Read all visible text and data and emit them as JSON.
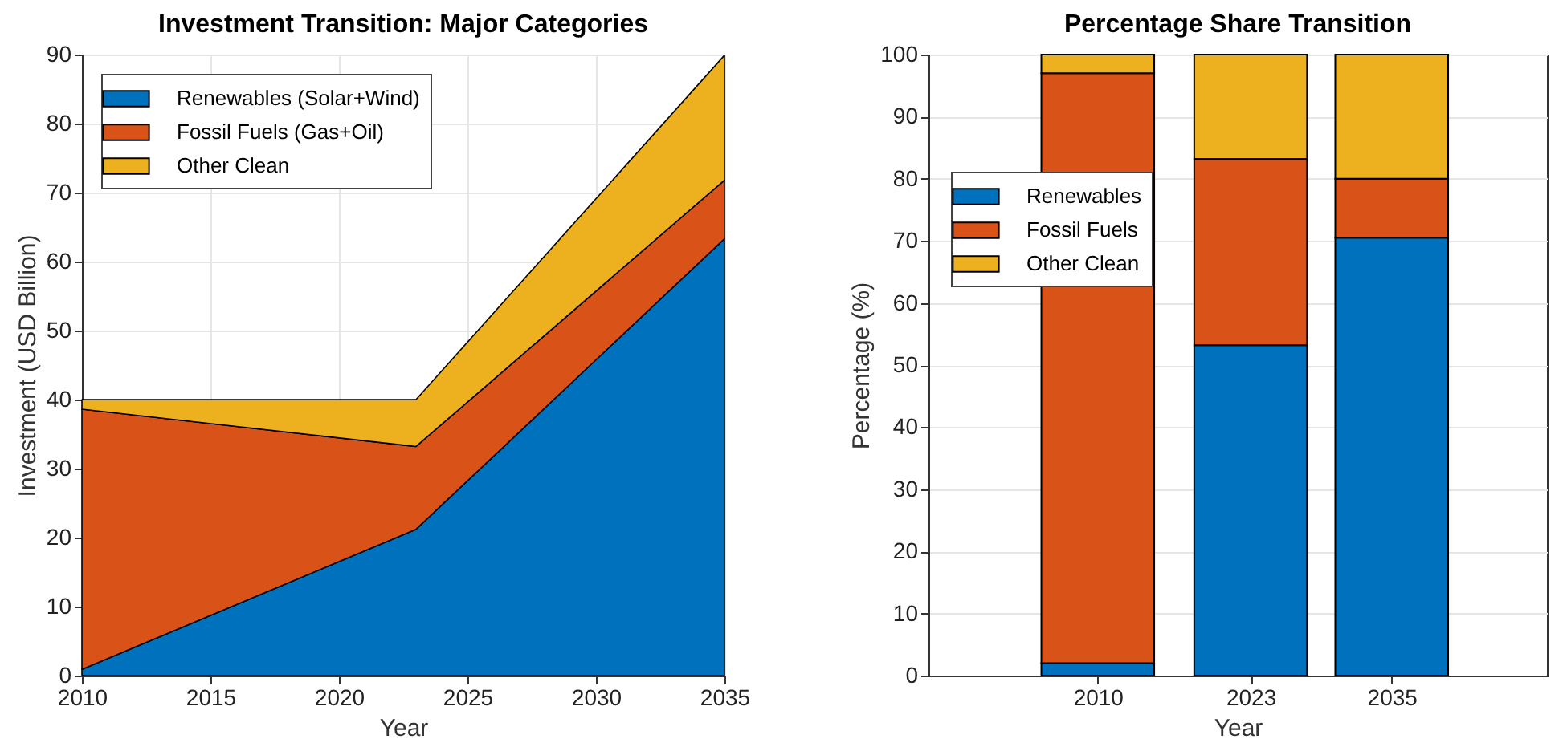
{
  "chart_data": [
    {
      "type": "area",
      "stacked": true,
      "title": "Investment Transition: Major Categories",
      "xlabel": "Year",
      "ylabel": "Investment (USD Billion)",
      "x": [
        2010,
        2023,
        2035
      ],
      "series": [
        {
          "name": "Renewables (Solar+Wind)",
          "color": "#0072bd",
          "values": [
            0.9,
            21.2,
            63.3
          ]
        },
        {
          "name": "Fossil Fuels (Gas+Oil)",
          "color": "#d95319",
          "values": [
            37.7,
            12.0,
            8.5
          ]
        },
        {
          "name": "Other Clean",
          "color": "#edb120",
          "values": [
            1.4,
            6.8,
            18.1
          ]
        }
      ],
      "xlim": [
        2010,
        2035
      ],
      "xticks": [
        2010,
        2015,
        2020,
        2025,
        2030,
        2035
      ],
      "ylim": [
        0,
        90
      ],
      "yticks": [
        0,
        10,
        20,
        30,
        40,
        50,
        60,
        70,
        80,
        90
      ],
      "grid": true,
      "legend": "top left"
    },
    {
      "type": "bar",
      "stacked": true,
      "title": "Percentage Share Transition",
      "xlabel": "Year",
      "ylabel": "Percentage (%)",
      "x": [
        2010,
        2023,
        2035
      ],
      "series": [
        {
          "name": "Renewables",
          "color": "#0072bd",
          "values": [
            2.0,
            53.2,
            70.5
          ]
        },
        {
          "name": "Fossil Fuels",
          "color": "#d95319",
          "values": [
            95.0,
            30.0,
            9.5
          ]
        },
        {
          "name": "Other Clean",
          "color": "#edb120",
          "values": [
            3.0,
            16.8,
            20.0
          ]
        }
      ],
      "xlim": [
        1995.6,
        2048.2
      ],
      "xticks": [
        2010,
        2023,
        2035
      ],
      "ylim": [
        0,
        100
      ],
      "yticks": [
        0,
        10,
        20,
        30,
        40,
        50,
        60,
        70,
        80,
        90,
        100
      ],
      "grid": "y",
      "legend": "left"
    }
  ]
}
